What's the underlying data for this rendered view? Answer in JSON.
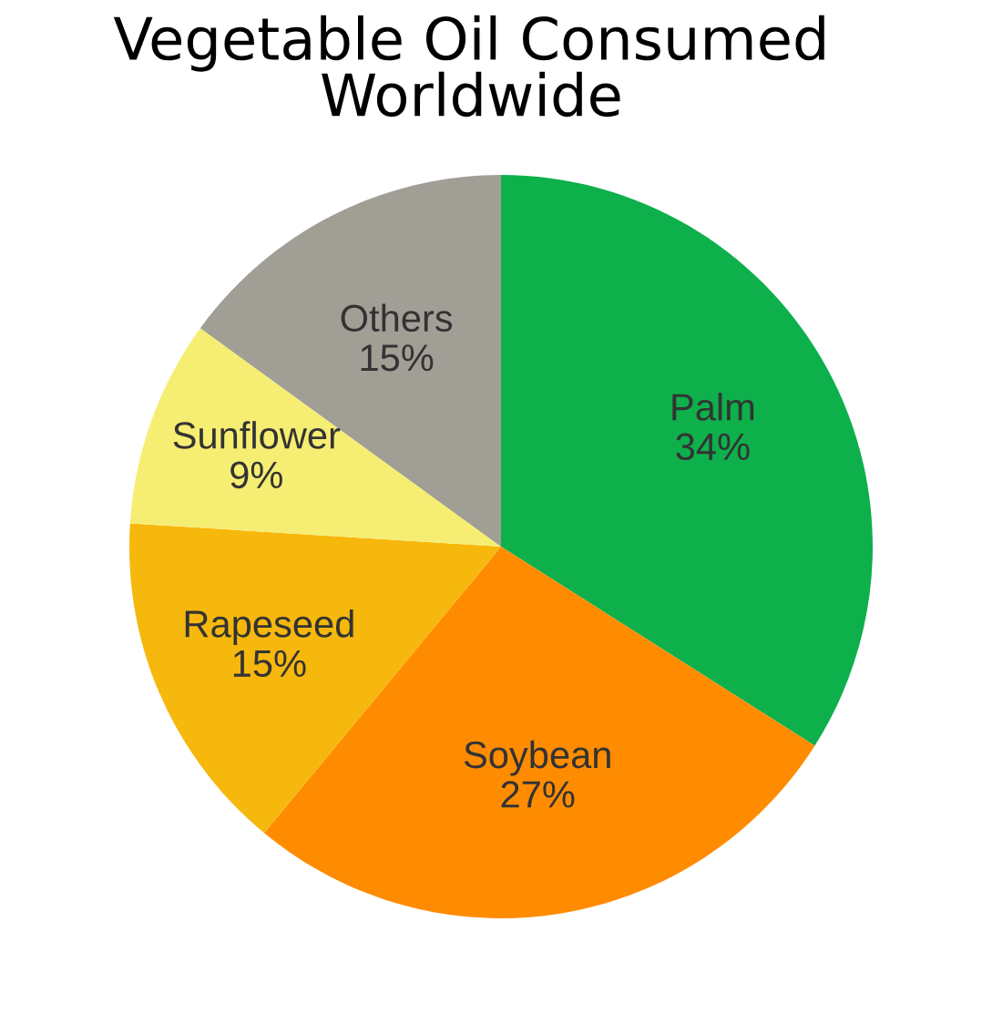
{
  "chart_data": {
    "type": "pie",
    "title": "Vegetable Oil Consumed\nWorldwide",
    "categories": [
      "Palm",
      "Soybean",
      "Rapeseed",
      "Sunflower",
      "Others"
    ],
    "values": [
      34,
      27,
      15,
      9,
      15
    ],
    "value_labels": [
      "34%",
      "27%",
      "15%",
      "9%",
      "15%"
    ],
    "colors": [
      "#0db04b",
      "#ff8c00",
      "#f6b80c",
      "#f6ee72",
      "#a19e96"
    ],
    "legend": false
  }
}
